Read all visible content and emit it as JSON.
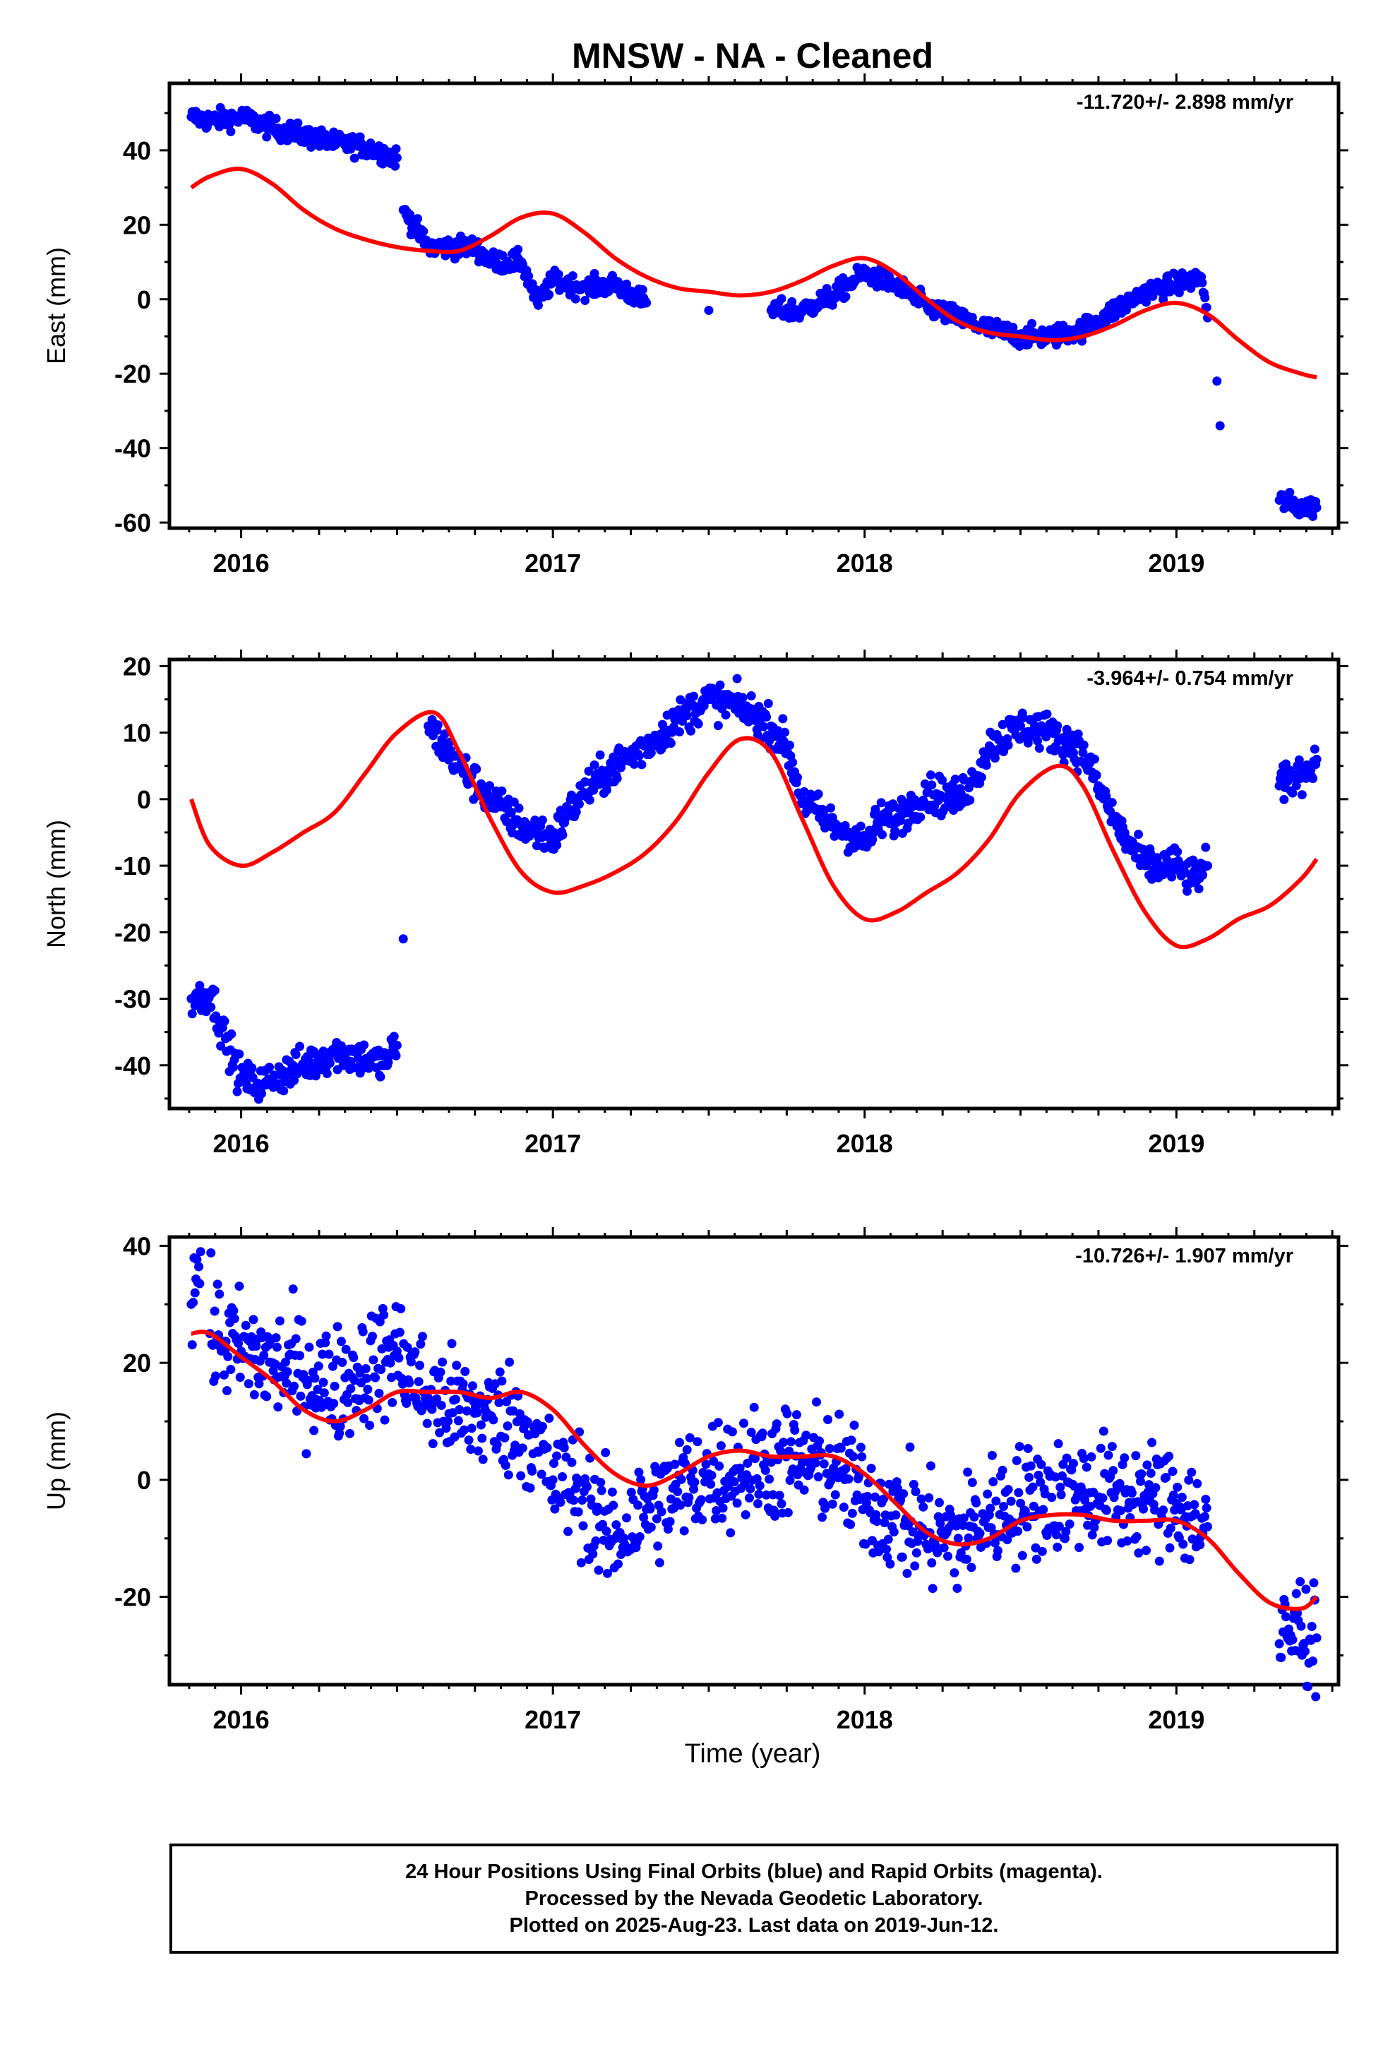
{
  "title": "MNSW  - NA - Cleaned",
  "xlabel": "Time (year)",
  "colors": {
    "data": "#0000ff",
    "model": "#ff0000",
    "axes": "#000000"
  },
  "caption": [
    "24 Hour Positions Using Final Orbits (blue) and Rapid Orbits (magenta).",
    "Processed by the Nevada Geodetic Laboratory.",
    "Plotted on 2025-Aug-23. Last data on 2019-Jun-12."
  ],
  "chart_data": [
    {
      "type": "scatter",
      "ylabel": "East (mm)",
      "rate": "-11.720+/- 2.898 mm/yr",
      "xlim": [
        2015.77,
        2019.52
      ],
      "ylim": [
        -61.5,
        58
      ],
      "yticks": [
        -60,
        -40,
        -20,
        0,
        20,
        40
      ],
      "xticks": [
        2016,
        2017,
        2018,
        2019
      ],
      "series": [
        {
          "values": [
            [
              2015.84,
              49
            ],
            [
              2015.9,
              48
            ],
            [
              2016.0,
              49
            ],
            [
              2016.1,
              46
            ],
            [
              2016.2,
              44
            ],
            [
              2016.3,
              42
            ],
            [
              2016.4,
              41
            ],
            [
              2016.5,
              38
            ],
            [
              2016.52,
              24
            ],
            [
              2016.6,
              14
            ],
            [
              2016.75,
              14
            ],
            [
              2016.8,
              10
            ],
            [
              2016.9,
              10
            ],
            [
              2016.95,
              -1
            ],
            [
              2017.0,
              5
            ],
            [
              2017.1,
              3
            ],
            [
              2017.2,
              4
            ],
            [
              2017.3,
              -1
            ],
            [
              2017.5,
              -3
            ],
            [
              2017.7,
              -3
            ],
            [
              2017.8,
              -3
            ],
            [
              2017.9,
              1
            ],
            [
              2018.0,
              7
            ],
            [
              2018.1,
              4
            ],
            [
              2018.2,
              -2
            ],
            [
              2018.3,
              -5
            ],
            [
              2018.4,
              -8
            ],
            [
              2018.5,
              -10
            ],
            [
              2018.6,
              -10
            ],
            [
              2018.7,
              -8
            ],
            [
              2018.8,
              -3
            ],
            [
              2018.9,
              2
            ],
            [
              2019.0,
              4
            ],
            [
              2019.08,
              6
            ],
            [
              2019.1,
              -5
            ],
            [
              2019.13,
              -22
            ],
            [
              2019.14,
              -34
            ],
            [
              2019.33,
              -54
            ],
            [
              2019.4,
              -56
            ],
            [
              2019.45,
              -56
            ]
          ]
        },
        {
          "values": [
            [
              2015.84,
              30
            ],
            [
              2015.9,
              33
            ],
            [
              2016.0,
              35
            ],
            [
              2016.1,
              31
            ],
            [
              2016.2,
              24
            ],
            [
              2016.3,
              19
            ],
            [
              2016.4,
              16
            ],
            [
              2016.5,
              14
            ],
            [
              2016.6,
              13
            ],
            [
              2016.7,
              13
            ],
            [
              2016.8,
              17
            ],
            [
              2016.9,
              22
            ],
            [
              2017.0,
              23
            ],
            [
              2017.1,
              18
            ],
            [
              2017.2,
              11
            ],
            [
              2017.3,
              6
            ],
            [
              2017.4,
              3
            ],
            [
              2017.5,
              2
            ],
            [
              2017.6,
              1
            ],
            [
              2017.7,
              2
            ],
            [
              2017.8,
              5
            ],
            [
              2017.9,
              9
            ],
            [
              2018.0,
              11
            ],
            [
              2018.1,
              7
            ],
            [
              2018.2,
              0
            ],
            [
              2018.3,
              -6
            ],
            [
              2018.4,
              -9
            ],
            [
              2018.5,
              -10
            ],
            [
              2018.6,
              -11
            ],
            [
              2018.7,
              -10
            ],
            [
              2018.8,
              -7
            ],
            [
              2018.9,
              -3
            ],
            [
              2019.0,
              -1
            ],
            [
              2019.1,
              -4
            ],
            [
              2019.2,
              -11
            ],
            [
              2019.3,
              -17
            ],
            [
              2019.4,
              -20
            ],
            [
              2019.45,
              -21
            ]
          ]
        }
      ]
    },
    {
      "type": "scatter",
      "ylabel": "North (mm)",
      "rate": "-3.964+/- 0.754 mm/yr",
      "xlim": [
        2015.77,
        2019.52
      ],
      "ylim": [
        -46.5,
        21
      ],
      "yticks": [
        -40,
        -30,
        -20,
        -10,
        0,
        10,
        20
      ],
      "xticks": [
        2016,
        2017,
        2018,
        2019
      ],
      "series": [
        {
          "values": [
            [
              2015.84,
              -30
            ],
            [
              2015.9,
              -29
            ],
            [
              2015.95,
              -36
            ],
            [
              2016.0,
              -42
            ],
            [
              2016.05,
              -43
            ],
            [
              2016.1,
              -42
            ],
            [
              2016.2,
              -40
            ],
            [
              2016.3,
              -38
            ],
            [
              2016.4,
              -39
            ],
            [
              2016.45,
              -40
            ],
            [
              2016.5,
              -37
            ],
            [
              2016.52,
              -21
            ],
            [
              2016.6,
              11
            ],
            [
              2016.65,
              8
            ],
            [
              2016.7,
              5
            ],
            [
              2016.8,
              0
            ],
            [
              2016.9,
              -4
            ],
            [
              2017.0,
              -6
            ],
            [
              2017.05,
              -2
            ],
            [
              2017.1,
              1
            ],
            [
              2017.2,
              5
            ],
            [
              2017.3,
              8
            ],
            [
              2017.4,
              12
            ],
            [
              2017.5,
              15
            ],
            [
              2017.6,
              14
            ],
            [
              2017.7,
              11
            ],
            [
              2017.75,
              8
            ],
            [
              2017.8,
              0
            ],
            [
              2017.9,
              -4
            ],
            [
              2017.95,
              -5
            ],
            [
              2018.0,
              -7
            ],
            [
              2018.05,
              -3
            ],
            [
              2018.1,
              -3
            ],
            [
              2018.2,
              1
            ],
            [
              2018.3,
              0
            ],
            [
              2018.35,
              3
            ],
            [
              2018.4,
              8
            ],
            [
              2018.5,
              11
            ],
            [
              2018.6,
              10
            ],
            [
              2018.7,
              7
            ],
            [
              2018.75,
              2
            ],
            [
              2018.8,
              -3
            ],
            [
              2018.85,
              -7
            ],
            [
              2018.9,
              -10
            ],
            [
              2019.0,
              -10
            ],
            [
              2019.05,
              -12
            ],
            [
              2019.1,
              -10
            ],
            [
              2019.33,
              2
            ],
            [
              2019.4,
              4
            ],
            [
              2019.45,
              6
            ]
          ]
        },
        {
          "values": [
            [
              2015.84,
              0
            ],
            [
              2015.9,
              -7
            ],
            [
              2016.0,
              -10
            ],
            [
              2016.1,
              -8
            ],
            [
              2016.2,
              -5
            ],
            [
              2016.3,
              -2
            ],
            [
              2016.4,
              4
            ],
            [
              2016.5,
              10
            ],
            [
              2016.62,
              13
            ],
            [
              2016.7,
              7
            ],
            [
              2016.8,
              -3
            ],
            [
              2016.9,
              -11
            ],
            [
              2017.0,
              -14
            ],
            [
              2017.1,
              -13
            ],
            [
              2017.2,
              -11
            ],
            [
              2017.3,
              -8
            ],
            [
              2017.4,
              -3
            ],
            [
              2017.5,
              4
            ],
            [
              2017.6,
              9
            ],
            [
              2017.7,
              7
            ],
            [
              2017.8,
              -3
            ],
            [
              2017.9,
              -13
            ],
            [
              2018.0,
              -18
            ],
            [
              2018.1,
              -17
            ],
            [
              2018.2,
              -14
            ],
            [
              2018.3,
              -11
            ],
            [
              2018.4,
              -6
            ],
            [
              2018.5,
              1
            ],
            [
              2018.62,
              5
            ],
            [
              2018.7,
              2
            ],
            [
              2018.8,
              -8
            ],
            [
              2018.9,
              -17
            ],
            [
              2019.0,
              -22
            ],
            [
              2019.1,
              -21
            ],
            [
              2019.2,
              -18
            ],
            [
              2019.3,
              -16
            ],
            [
              2019.4,
              -12
            ],
            [
              2019.45,
              -9
            ]
          ]
        }
      ]
    },
    {
      "type": "scatter",
      "ylabel": "Up (mm)",
      "rate": "-10.726+/- 1.907 mm/yr",
      "xlim": [
        2015.77,
        2019.52
      ],
      "ylim": [
        -35,
        41.5
      ],
      "yticks": [
        -20,
        0,
        20,
        40
      ],
      "xticks": [
        2016,
        2017,
        2018,
        2019
      ],
      "series": [
        {
          "values": [
            [
              2015.84,
              30
            ],
            [
              2015.87,
              39
            ],
            [
              2015.9,
              25
            ],
            [
              2016.0,
              22
            ],
            [
              2016.1,
              20
            ],
            [
              2016.2,
              18
            ],
            [
              2016.3,
              16
            ],
            [
              2016.4,
              19
            ],
            [
              2016.5,
              22
            ],
            [
              2016.6,
              14
            ],
            [
              2016.7,
              12
            ],
            [
              2016.8,
              11
            ],
            [
              2016.9,
              10
            ],
            [
              2017.0,
              0
            ],
            [
              2017.1,
              -2
            ],
            [
              2017.15,
              -8
            ],
            [
              2017.2,
              -10
            ],
            [
              2017.3,
              -5
            ],
            [
              2017.4,
              -2
            ],
            [
              2017.5,
              1
            ],
            [
              2017.6,
              2
            ],
            [
              2017.7,
              3
            ],
            [
              2017.8,
              3
            ],
            [
              2017.9,
              2
            ],
            [
              2018.0,
              -3
            ],
            [
              2018.1,
              -6
            ],
            [
              2018.2,
              -9
            ],
            [
              2018.3,
              -10
            ],
            [
              2018.4,
              -6
            ],
            [
              2018.5,
              -4
            ],
            [
              2018.6,
              -3
            ],
            [
              2018.7,
              -2
            ],
            [
              2018.8,
              -3
            ],
            [
              2018.9,
              -3
            ],
            [
              2019.0,
              -4
            ],
            [
              2019.1,
              -8
            ],
            [
              2019.33,
              -28
            ],
            [
              2019.4,
              -25
            ],
            [
              2019.45,
              -27
            ]
          ]
        },
        {
          "values": [
            [
              2015.84,
              25
            ],
            [
              2015.9,
              25
            ],
            [
              2016.0,
              21
            ],
            [
              2016.1,
              17
            ],
            [
              2016.2,
              12
            ],
            [
              2016.3,
              10
            ],
            [
              2016.4,
              12
            ],
            [
              2016.5,
              15
            ],
            [
              2016.6,
              15
            ],
            [
              2016.7,
              15
            ],
            [
              2016.8,
              14
            ],
            [
              2016.9,
              15
            ],
            [
              2017.0,
              12
            ],
            [
              2017.1,
              6
            ],
            [
              2017.2,
              1
            ],
            [
              2017.3,
              -1
            ],
            [
              2017.4,
              1
            ],
            [
              2017.5,
              4
            ],
            [
              2017.6,
              5
            ],
            [
              2017.7,
              4
            ],
            [
              2017.8,
              4
            ],
            [
              2017.9,
              4
            ],
            [
              2018.0,
              1
            ],
            [
              2018.1,
              -4
            ],
            [
              2018.2,
              -9
            ],
            [
              2018.3,
              -11
            ],
            [
              2018.4,
              -10
            ],
            [
              2018.5,
              -7
            ],
            [
              2018.6,
              -6
            ],
            [
              2018.7,
              -6
            ],
            [
              2018.8,
              -7
            ],
            [
              2018.9,
              -7
            ],
            [
              2019.0,
              -7
            ],
            [
              2019.1,
              -10
            ],
            [
              2019.2,
              -16
            ],
            [
              2019.3,
              -21
            ],
            [
              2019.4,
              -22
            ],
            [
              2019.45,
              -20
            ]
          ]
        }
      ]
    }
  ]
}
